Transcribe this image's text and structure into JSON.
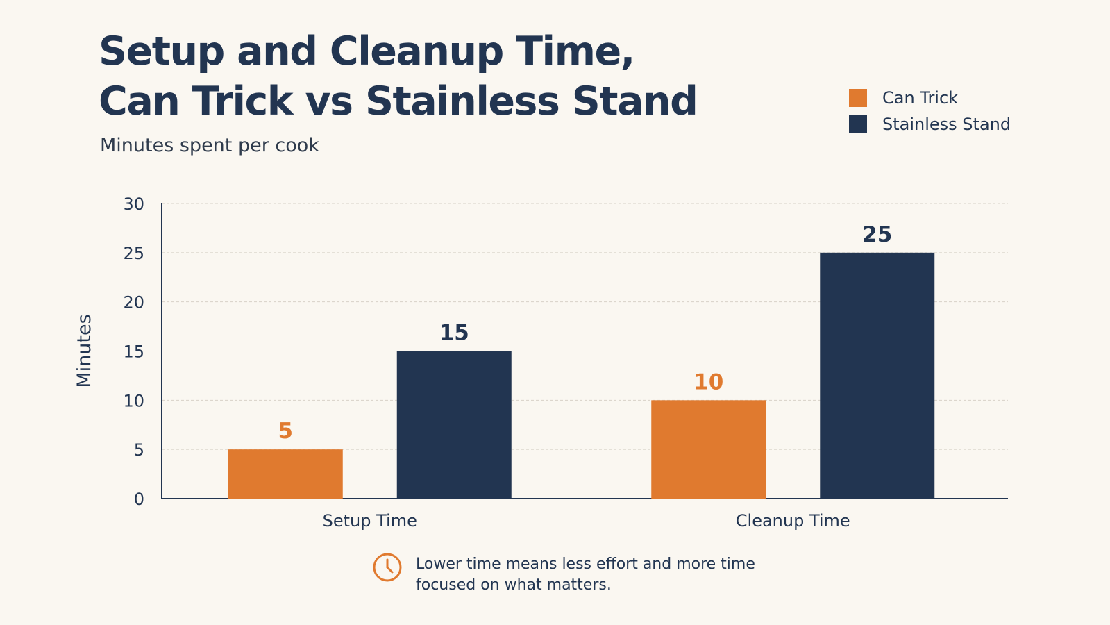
{
  "title_line1": "Setup and Cleanup Time,",
  "title_line2": "Can Trick vs Stainless Stand",
  "subtitle": "Minutes spent per cook",
  "legend": [
    {
      "label": "Can Trick",
      "color": "#e07a2f"
    },
    {
      "label": "Stainless Stand",
      "color": "#223551"
    }
  ],
  "note": {
    "icon": "clock-icon",
    "line1": "Lower time means less effort and more time",
    "line2": "focused on what matters."
  },
  "chart_data": {
    "type": "bar",
    "categories": [
      "Setup Time",
      "Cleanup Time"
    ],
    "series": [
      {
        "name": "Can Trick",
        "values": [
          5,
          10
        ],
        "color": "#e07a2f"
      },
      {
        "name": "Stainless Stand",
        "values": [
          15,
          25
        ],
        "color": "#223551"
      }
    ],
    "ylabel": "Minutes",
    "xlabel": "",
    "ylim": [
      0,
      30
    ],
    "yticks": [
      0,
      5,
      10,
      15,
      20,
      25,
      30
    ],
    "grid": true,
    "legend_position": "top-right",
    "data_labels": true
  }
}
